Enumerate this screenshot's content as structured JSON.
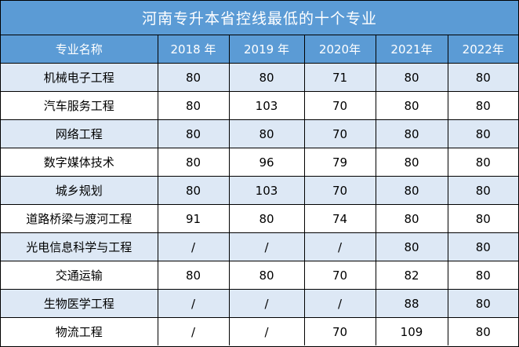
{
  "title": "河南专升本省控线最低的十个专业",
  "headers": [
    "专业名称",
    "2018 年",
    "2019 年",
    "2020年",
    "2021年",
    "2022年"
  ],
  "rows": [
    {
      "name": "机械电子工程",
      "values": [
        "80",
        "80",
        "71",
        "80",
        "80"
      ]
    },
    {
      "name": "汽车服务工程",
      "values": [
        "80",
        "103",
        "70",
        "80",
        "80"
      ]
    },
    {
      "name": "网络工程",
      "values": [
        "80",
        "80",
        "70",
        "80",
        "80"
      ]
    },
    {
      "name": "数字媒体技术",
      "values": [
        "80",
        "96",
        "79",
        "80",
        "80"
      ]
    },
    {
      "name": "城乡规划",
      "values": [
        "80",
        "103",
        "70",
        "80",
        "80"
      ]
    },
    {
      "name": "道路桥梁与渡河工程",
      "values": [
        "91",
        "80",
        "74",
        "80",
        "80"
      ]
    },
    {
      "name": "光电信息科学与工程",
      "values": [
        "/",
        "/",
        "/",
        "80",
        "80"
      ]
    },
    {
      "name": "交通运输",
      "values": [
        "80",
        "80",
        "70",
        "82",
        "80"
      ]
    },
    {
      "name": "生物医学工程",
      "values": [
        "/",
        "/",
        "/",
        "88",
        "80"
      ]
    },
    {
      "name": "物流工程",
      "values": [
        "/",
        "/",
        "70",
        "109",
        "80"
      ]
    }
  ]
}
